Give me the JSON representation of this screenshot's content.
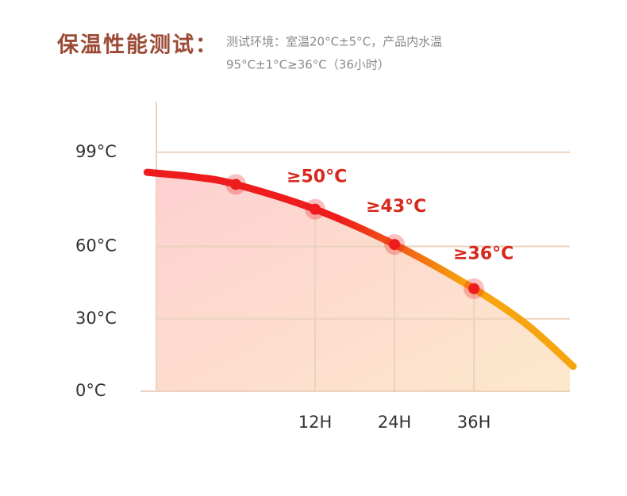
{
  "chart_data": {
    "type": "line",
    "title": "保温性能测试：",
    "subtitle": [
      "测试环境：室温20°C±5°C，产品内水温",
      "95°C±1°C≥36°C（36小时）"
    ],
    "xlim": [
      -12,
      50.5
    ],
    "ylim": [
      0,
      120
    ],
    "xticks": [
      {
        "value": 12,
        "label": "12H"
      },
      {
        "value": 24,
        "label": "24H"
      },
      {
        "value": 36,
        "label": "36H"
      }
    ],
    "yticks": [
      {
        "value": 0,
        "label": "0°C"
      },
      {
        "value": 30,
        "label": "30°C"
      },
      {
        "value": 60,
        "label": "60°C"
      },
      {
        "value": 99,
        "label": "99°C"
      }
    ],
    "grid": true,
    "colors": [
      "#ee1c1c",
      "#f6a50e"
    ],
    "area_colors": [
      "#fdd0d0",
      "#fde8cc"
    ],
    "line": {
      "x": [
        -13.4,
        -6,
        0,
        12,
        24,
        36,
        44,
        51
      ],
      "values": [
        90.7,
        88.7,
        85.7,
        75.4,
        60.8,
        42.5,
        27.6,
        10.3
      ]
    },
    "points": {
      "x": [
        0,
        12,
        24,
        36
      ],
      "values": [
        85.7,
        75.4,
        60.8,
        42.5
      ]
    },
    "annotations": [
      "≥50°C",
      "≥43°C",
      "≥36°C"
    ]
  }
}
